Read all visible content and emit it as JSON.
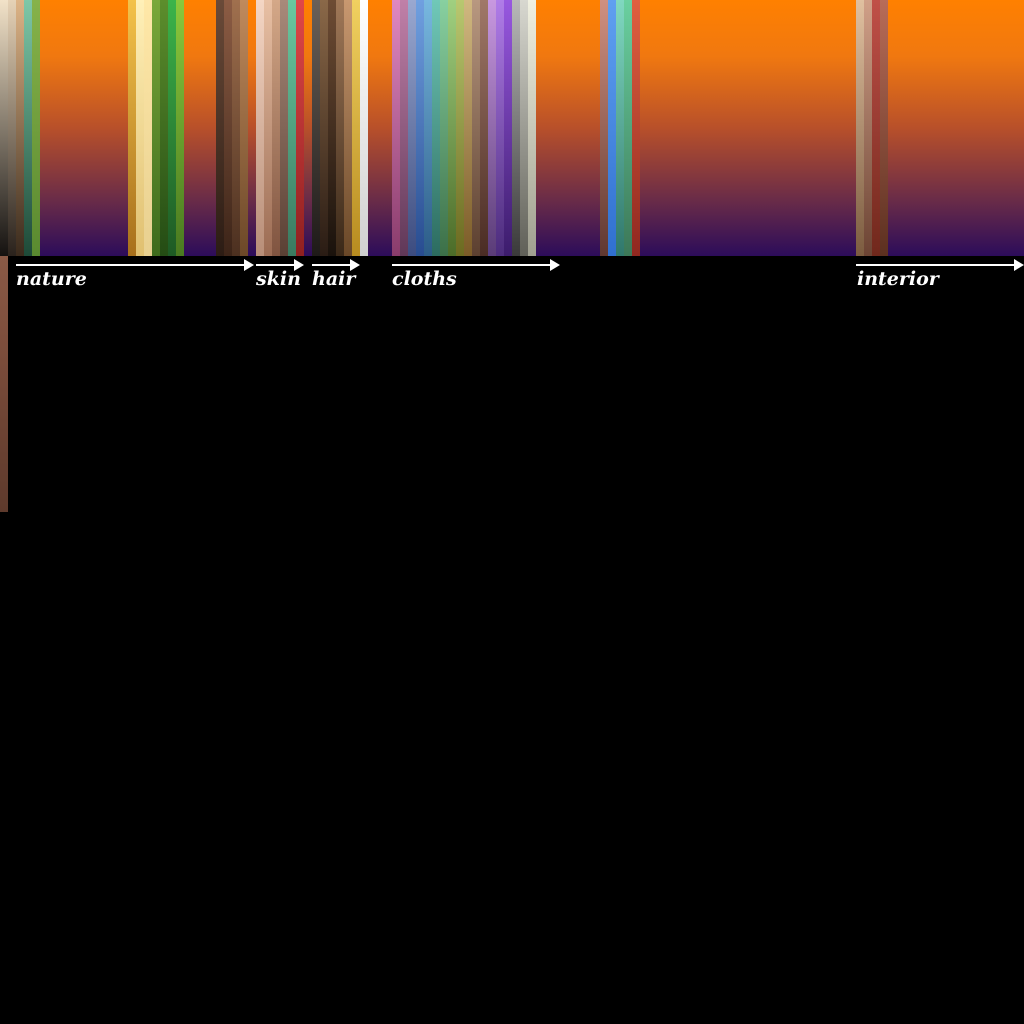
{
  "groups": {
    "nature": "nature",
    "skin": "skin",
    "hair": "hair",
    "cloths": "cloths",
    "interior": "interior"
  },
  "colors": {
    "background": "#000000",
    "label": "#ffffff",
    "arrow": "#ffffff",
    "filler_top": "#ff8000",
    "filler_bottom": "#2c0c5a"
  }
}
